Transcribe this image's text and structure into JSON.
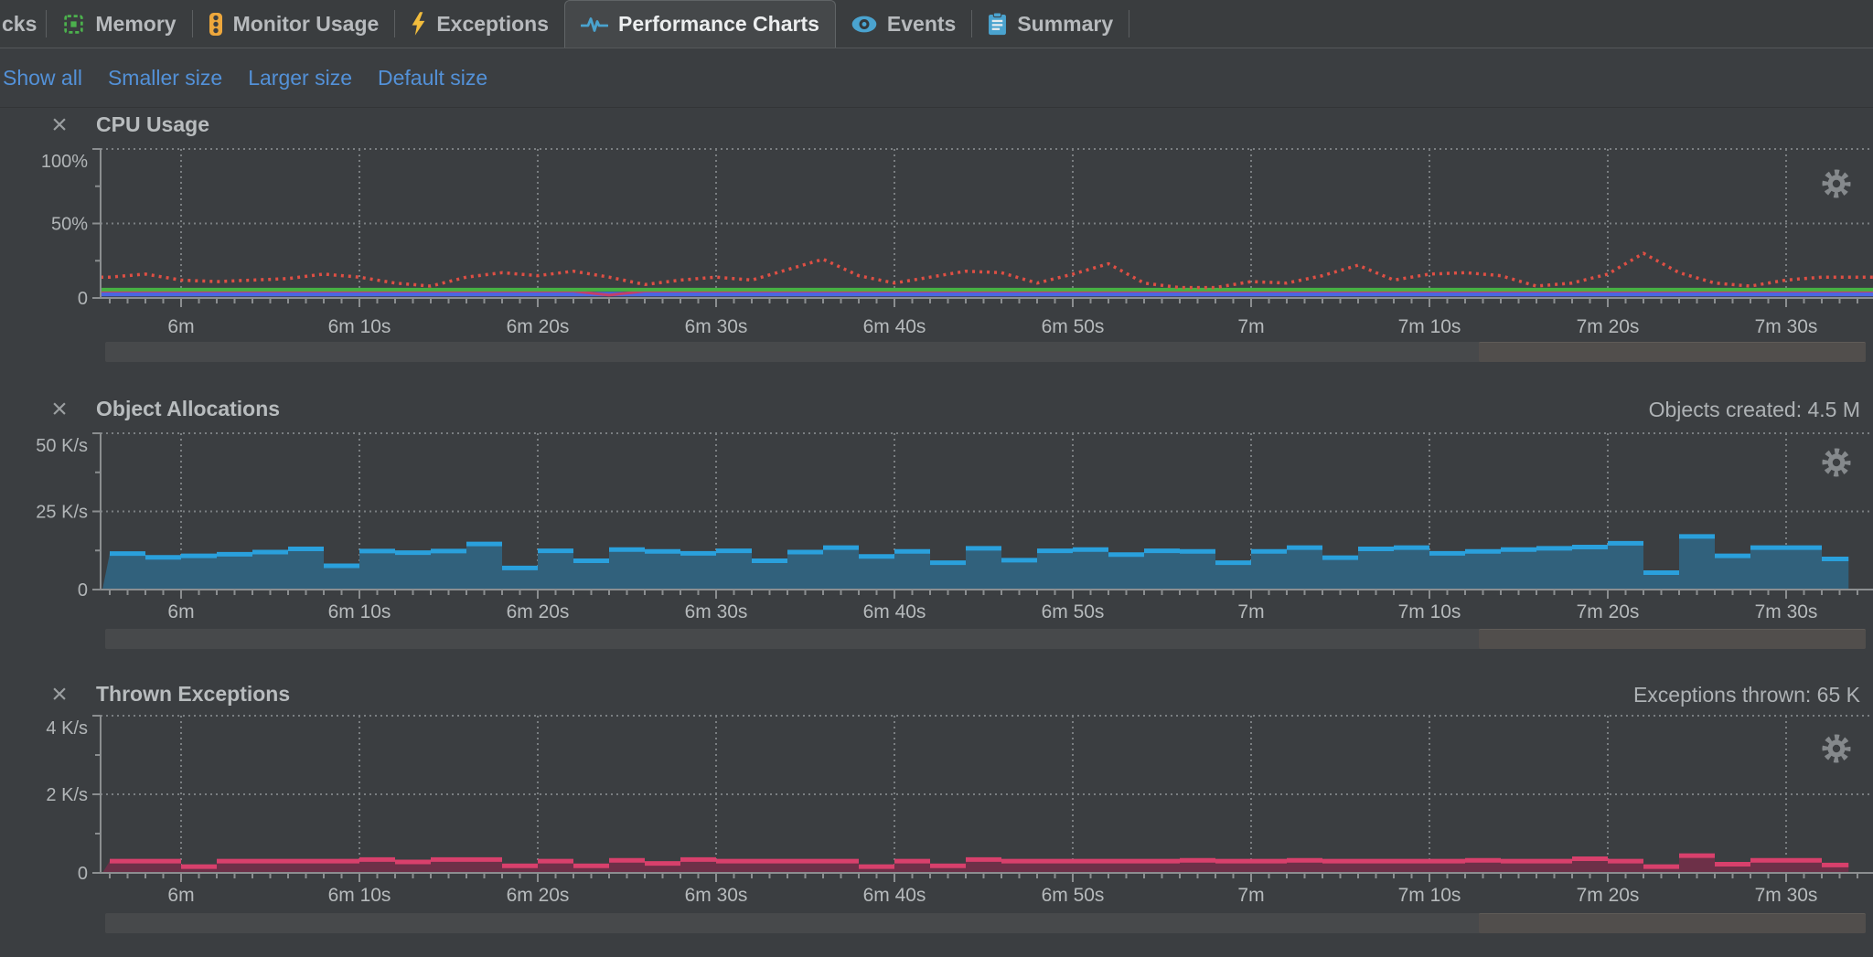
{
  "colors": {
    "background": "#3b3e41",
    "link_blue": "#5391d8",
    "axis_gray": "#8b8e90",
    "grid_dotted": "#7a7e81",
    "cpu_red": "#de4f44",
    "cpu_green": "#46b143",
    "cpu_blue": "#4b66e0",
    "cpu_magenta": "#c2406a",
    "alloc_line_blue": "#2aa0dc",
    "alloc_fill": "#31617c",
    "exc_line_pink": "#d8406c",
    "exc_fill": "#6d3048",
    "tab_icon_green": "#4cb14d",
    "tab_icon_orange": "#eda73c",
    "tab_icon_yellow": "#f2bd3d",
    "tab_icon_blue": "#4aa3cf"
  },
  "tab_bar": {
    "tabs": [
      {
        "label": "cks",
        "icon": "",
        "selected": false,
        "partial": true
      },
      {
        "label": "Memory",
        "icon": "memory-chip-icon",
        "selected": false
      },
      {
        "label": "Monitor Usage",
        "icon": "traffic-light-icon",
        "selected": false
      },
      {
        "label": "Exceptions",
        "icon": "lightning-bolt-icon",
        "selected": false
      },
      {
        "label": "Performance Charts",
        "icon": "pulse-waveform-icon",
        "selected": true
      },
      {
        "label": "Events",
        "icon": "eye-icon",
        "selected": false
      },
      {
        "label": "Summary",
        "icon": "clipboard-icon",
        "selected": false
      }
    ]
  },
  "toolbar": {
    "links": [
      "Show all",
      "Smaller size",
      "Larger size",
      "Default size"
    ]
  },
  "time_axis": {
    "tick_seconds": [
      360,
      370,
      380,
      390,
      400,
      410,
      420,
      430,
      440,
      450
    ],
    "tick_labels": [
      "6m",
      "6m 10s",
      "6m 20s",
      "6m 30s",
      "6m 40s",
      "6m 50s",
      "7m",
      "7m 10s",
      "7m 20s",
      "7m 30s"
    ]
  },
  "panels": [
    {
      "title": "CPU Usage",
      "right_text": ""
    },
    {
      "title": "Object Allocations",
      "right_text": "Objects created: 4.5 M"
    },
    {
      "title": "Thrown Exceptions",
      "right_text": "Exceptions thrown: 65 K"
    }
  ],
  "chart_data": [
    {
      "type": "line",
      "title": "CPU Usage",
      "ylim": [
        0,
        100
      ],
      "y_ticks": [
        {
          "label": "100%",
          "value": 100
        },
        {
          "label": "50%",
          "value": 50
        },
        {
          "label": "0",
          "value": 0
        }
      ],
      "y_minor_values": [
        75,
        25
      ],
      "x_tick_labels": [
        "6m",
        "6m 10s",
        "6m 20s",
        "6m 30s",
        "6m 40s",
        "6m 50s",
        "7m",
        "7m 10s",
        "7m 20s",
        "7m 30s"
      ],
      "grid": "dotted",
      "series": [
        {
          "name": "blue-line",
          "style": "hline",
          "color": "#4b66e0",
          "width": 5,
          "value": 2.6
        },
        {
          "name": "magenta-line",
          "style": "line",
          "color": "#c2406a",
          "width": 3,
          "t0": 356,
          "dt": 2,
          "values": [
            4.6,
            4.6,
            4.6,
            4.6,
            4.6,
            4.6,
            4.6,
            4.6,
            4.6,
            4.6,
            4.6,
            4.6,
            4.6,
            4.6,
            1.9,
            4.6,
            4.6,
            4.6,
            4.6,
            4.6,
            4.6,
            4.6,
            4.6,
            4.6,
            4.6,
            4.6,
            4.6,
            4.6,
            4.6,
            4.6,
            4.6,
            4.6,
            4.6,
            4.6,
            4.6,
            4.6,
            4.6,
            4.6,
            4.6,
            4.6,
            4.6,
            4.6,
            4.6,
            4.6,
            4.6,
            4.6,
            4.6,
            4.6,
            4.6
          ]
        },
        {
          "name": "green-line",
          "style": "hline",
          "color": "#46b143",
          "width": 4,
          "value": 5.6
        },
        {
          "name": "red-dotted-cpu-usage",
          "style": "dotted-line",
          "color": "#de4f44",
          "width": 3.5,
          "dash": "3 5",
          "t0": 356,
          "dt": 2,
          "values": [
            14,
            16,
            12,
            11,
            12,
            13,
            16,
            14,
            10,
            8,
            14,
            17,
            15,
            18,
            14,
            9,
            12,
            14,
            12,
            19,
            26,
            15,
            10,
            14,
            18,
            17,
            10,
            16,
            23,
            10,
            7,
            7,
            11,
            10,
            15,
            22,
            12,
            16,
            17,
            15,
            8,
            10,
            16,
            30,
            17,
            10,
            8,
            12,
            14
          ]
        }
      ]
    },
    {
      "type": "area",
      "title": "Object Allocations",
      "counter_text": "Objects created: 4.5 M",
      "ylim": [
        0,
        50
      ],
      "y_ticks": [
        {
          "label": "50 K/s",
          "value": 50
        },
        {
          "label": "25 K/s",
          "value": 25
        },
        {
          "label": "0",
          "value": 0
        }
      ],
      "y_minor_values": [
        37.5,
        12.5
      ],
      "x_tick_labels": [
        "6m",
        "6m 10s",
        "6m 20s",
        "6m 30s",
        "6m 40s",
        "6m 50s",
        "7m",
        "7m 10s",
        "7m 20s",
        "7m 30s"
      ],
      "grid": "dotted",
      "series": [
        {
          "name": "object-allocation-rate",
          "style": "step-area",
          "line_color": "#2aa0dc",
          "fill_color": "#31617c",
          "width": 5,
          "t0": 356,
          "dt": 2,
          "end_s": 453.5,
          "values": [
            11.5,
            10.3,
            10.8,
            11.3,
            12.0,
            13.0,
            7.6,
            12.3,
            11.8,
            12.3,
            14.6,
            6.9,
            12.4,
            9.2,
            12.8,
            12.2,
            11.6,
            12.4,
            9.2,
            12.0,
            13.4,
            10.6,
            12.2,
            8.6,
            13.2,
            9.4,
            12.4,
            12.8,
            11.2,
            12.4,
            12.2,
            8.6,
            12.2,
            13.4,
            10.2,
            13.0,
            13.4,
            11.6,
            12.2,
            12.8,
            13.2,
            13.6,
            14.8,
            5.4,
            17.0,
            10.8,
            13.4,
            13.4,
            9.8
          ]
        }
      ]
    },
    {
      "type": "area",
      "title": "Thrown Exceptions",
      "counter_text": "Exceptions thrown: 65 K",
      "ylim": [
        0,
        4
      ],
      "y_ticks": [
        {
          "label": "4 K/s",
          "value": 4
        },
        {
          "label": "2 K/s",
          "value": 2
        },
        {
          "label": "0",
          "value": 0
        }
      ],
      "y_minor_values": [
        3,
        1
      ],
      "x_tick_labels": [
        "6m",
        "6m 10s",
        "6m 20s",
        "6m 30s",
        "6m 40s",
        "6m 50s",
        "7m",
        "7m 10s",
        "7m 20s",
        "7m 30s"
      ],
      "grid": "dotted",
      "series": [
        {
          "name": "exception-throw-rate",
          "style": "step-area",
          "line_color": "#d8406c",
          "fill_color": "#6d3048",
          "width": 5,
          "t0": 356,
          "dt": 2,
          "end_s": 453.5,
          "values": [
            0.3,
            0.3,
            0.16,
            0.3,
            0.3,
            0.3,
            0.3,
            0.34,
            0.28,
            0.34,
            0.34,
            0.18,
            0.3,
            0.18,
            0.32,
            0.24,
            0.34,
            0.3,
            0.3,
            0.3,
            0.3,
            0.16,
            0.3,
            0.18,
            0.34,
            0.3,
            0.3,
            0.3,
            0.3,
            0.3,
            0.32,
            0.3,
            0.3,
            0.32,
            0.3,
            0.3,
            0.3,
            0.3,
            0.32,
            0.3,
            0.3,
            0.36,
            0.3,
            0.16,
            0.44,
            0.22,
            0.32,
            0.32,
            0.2
          ]
        }
      ]
    }
  ]
}
